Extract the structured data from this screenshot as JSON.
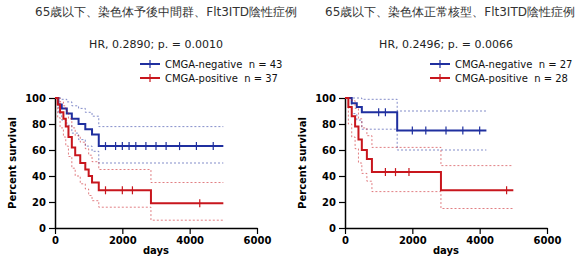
{
  "chart_data": [
    {
      "type": "line",
      "line_style": "step",
      "grid": false,
      "legend": "top",
      "title": "65歳以下、染色体予後中間群、Flt3ITD陰性症例",
      "annotation": "HR, 0.2890; p. = 0.0010",
      "x_label": "days",
      "y_label": "Percent survival",
      "xlim": [
        0,
        6000
      ],
      "xticks": [
        0,
        2000,
        4000,
        6000
      ],
      "ylim": [
        0,
        100
      ],
      "yticks": [
        0,
        20,
        40,
        60,
        80,
        100
      ],
      "series": [
        {
          "name": "CMGA-negative  n = 43",
          "color": "#1f2f9f",
          "x": [
            0,
            100,
            200,
            350,
            500,
            700,
            900,
            1100,
            1300,
            5000
          ],
          "values": [
            100,
            95,
            92,
            88,
            84,
            80,
            76,
            72,
            63,
            63
          ],
          "upper": [
            100,
            100,
            99,
            97,
            94,
            92,
            89,
            86,
            78,
            78
          ],
          "lower": [
            100,
            88,
            83,
            79,
            73,
            68,
            63,
            59,
            50,
            50
          ],
          "censored": [
            1500,
            1800,
            2000,
            2200,
            2400,
            2700,
            3000,
            3300,
            3700,
            4200,
            4700
          ]
        },
        {
          "name": "CMGA-positive  n = 37",
          "color": "#c8161d",
          "x": [
            0,
            80,
            150,
            250,
            320,
            400,
            500,
            600,
            750,
            900,
            1000,
            1100,
            1300,
            2850,
            5000
          ],
          "values": [
            100,
            95,
            89,
            84,
            78,
            70,
            62,
            56,
            50,
            45,
            40,
            35,
            29,
            19,
            19
          ],
          "upper": [
            100,
            100,
            97,
            94,
            90,
            84,
            77,
            71,
            66,
            61,
            56,
            51,
            45,
            35,
            35
          ],
          "lower": [
            100,
            85,
            77,
            70,
            63,
            55,
            46,
            40,
            34,
            30,
            25,
            21,
            16,
            6,
            6
          ],
          "censored": [
            1500,
            2000,
            2300,
            4300
          ]
        }
      ]
    },
    {
      "type": "line",
      "line_style": "step",
      "grid": false,
      "legend": "top",
      "title": "65歳以下、染色体正常核型、Flt3ITD陰性症例",
      "annotation": "HR, 0.2496; p. = 0.0066",
      "x_label": "days",
      "y_label": "Percent survival",
      "xlim": [
        0,
        6000
      ],
      "xticks": [
        0,
        2000,
        4000,
        6000
      ],
      "ylim": [
        0,
        100
      ],
      "yticks": [
        0,
        20,
        40,
        60,
        80,
        100
      ],
      "series": [
        {
          "name": "CMGA-negative  n = 27",
          "color": "#1f2f9f",
          "x": [
            0,
            200,
            350,
            500,
            1550,
            4200
          ],
          "values": [
            100,
            96,
            93,
            89,
            75,
            75
          ],
          "upper": [
            100,
            100,
            100,
            99,
            90,
            90
          ],
          "lower": [
            100,
            88,
            83,
            76,
            60,
            60
          ],
          "censored": [
            1000,
            1200,
            2000,
            2400,
            3000,
            3500,
            4000
          ]
        },
        {
          "name": "CMGA-positive  n = 28",
          "color": "#c8161d",
          "x": [
            0,
            100,
            200,
            300,
            400,
            500,
            650,
            800,
            2850,
            5000
          ],
          "values": [
            100,
            93,
            86,
            78,
            68,
            60,
            53,
            43,
            29,
            29
          ],
          "upper": [
            100,
            100,
            98,
            92,
            84,
            77,
            71,
            62,
            48,
            48
          ],
          "lower": [
            100,
            80,
            70,
            61,
            50,
            42,
            36,
            28,
            15,
            15
          ],
          "censored": [
            1200,
            1500,
            1900,
            4800
          ]
        }
      ]
    }
  ]
}
